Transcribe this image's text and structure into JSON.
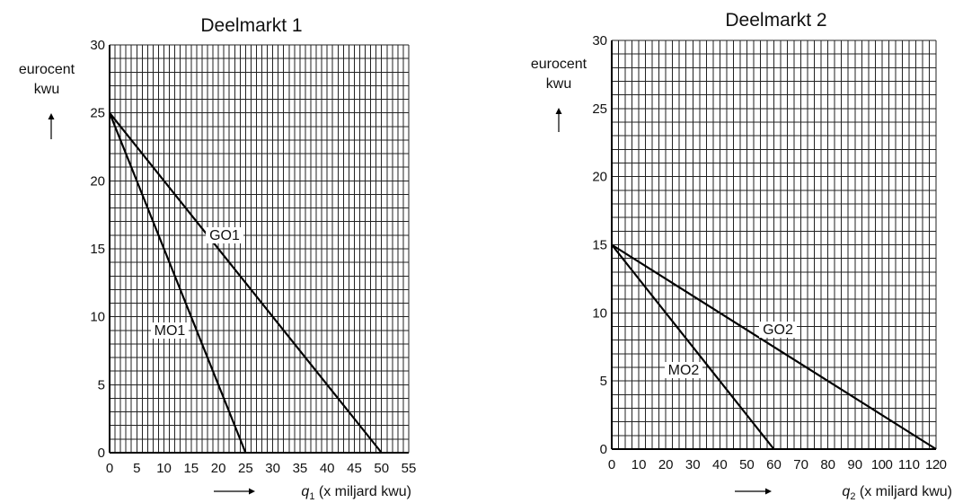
{
  "chart_data": [
    {
      "type": "line",
      "title": "Deelmarkt 1",
      "ylabel": [
        "eurocent",
        "kwu"
      ],
      "xlabel_var": "q",
      "xlabel_sub": "1",
      "xlabel_rest": " (x miljard kwu)",
      "xlim": [
        0,
        55
      ],
      "ylim": [
        0,
        30
      ],
      "xticks": [
        0,
        5,
        10,
        15,
        20,
        25,
        30,
        35,
        40,
        45,
        50,
        55
      ],
      "yticks": [
        0,
        5,
        10,
        15,
        20,
        25,
        30
      ],
      "grid": true,
      "series": [
        {
          "name": "GO1",
          "x": [
            0,
            50
          ],
          "y": [
            25,
            0
          ]
        },
        {
          "name": "MO1",
          "x": [
            0,
            25
          ],
          "y": [
            25,
            0
          ]
        }
      ]
    },
    {
      "type": "line",
      "title": "Deelmarkt 2",
      "ylabel": [
        "eurocent",
        "kwu"
      ],
      "xlabel_var": "q",
      "xlabel_sub": "2",
      "xlabel_rest": " (x miljard kwu)",
      "xlim": [
        0,
        120
      ],
      "ylim": [
        0,
        30
      ],
      "xticks": [
        0,
        10,
        20,
        30,
        40,
        50,
        60,
        70,
        80,
        90,
        100,
        110,
        120
      ],
      "yticks": [
        0,
        5,
        10,
        15,
        20,
        25,
        30
      ],
      "grid": true,
      "series": [
        {
          "name": "GO2",
          "x": [
            0,
            120
          ],
          "y": [
            15,
            0
          ]
        },
        {
          "name": "MO2",
          "x": [
            0,
            60
          ],
          "y": [
            15,
            0
          ]
        }
      ]
    }
  ]
}
